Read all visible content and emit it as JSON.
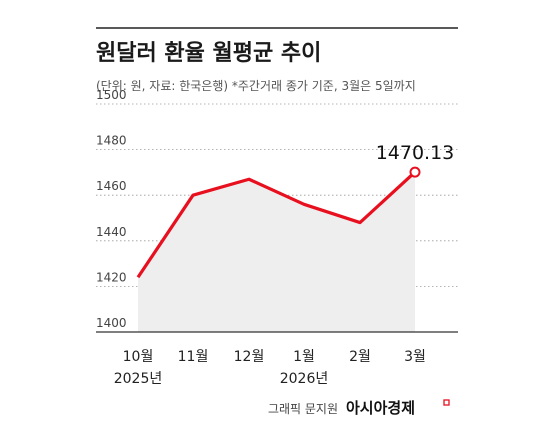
{
  "chart_data": {
    "type": "line",
    "title": "원달러 환율 월평균 추이",
    "subtitle": "(단위: 원, 자료: 한국은행) *주간거래 종가 기준, 3월은 5일까지",
    "categories": [
      "10월",
      "11월",
      "12월",
      "1월",
      "2월",
      "3월"
    ],
    "year_labels": [
      {
        "at": "10월",
        "text": "2025년"
      },
      {
        "at": "1월",
        "text": "2026년"
      }
    ],
    "values": [
      1424,
      1460,
      1467,
      1456,
      1448,
      1470.13
    ],
    "ylim": [
      1400,
      1500
    ],
    "yticks": [
      1400,
      1420,
      1440,
      1460,
      1480,
      1500
    ],
    "ytick_labels": [
      "1400",
      "1420",
      "1440",
      "1460",
      "1480",
      "1500"
    ],
    "grid": true,
    "annotation": {
      "at": "3월",
      "text": "1470.13"
    },
    "line_color": "#e8101e",
    "fill_color": "#eeeeee"
  },
  "credit": "그래픽 문지원",
  "logo": "아시아경제",
  "logo_color": "#e8101e"
}
